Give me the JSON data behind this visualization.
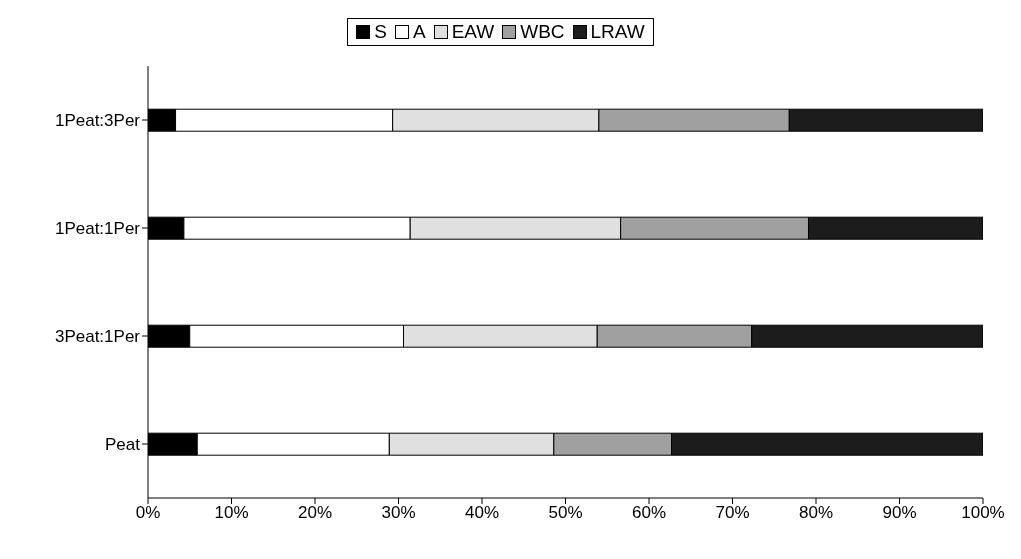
{
  "chart_data": {
    "type": "bar",
    "orientation": "horizontal",
    "stacked": true,
    "categories": [
      "1Peat:3Per",
      "1Peat:1Per",
      "3Peat:1Per",
      "Peat"
    ],
    "series": [
      {
        "name": "S",
        "color": "#000000",
        "values": [
          3.3,
          4.3,
          5.0,
          5.9
        ]
      },
      {
        "name": "A",
        "color": "#ffffff",
        "values": [
          26.0,
          27.1,
          25.6,
          23.0
        ]
      },
      {
        "name": "EAW",
        "color": "#e0e0e0",
        "values": [
          24.7,
          25.2,
          23.2,
          19.7
        ]
      },
      {
        "name": "WBC",
        "color": "#a0a0a0",
        "values": [
          22.8,
          22.5,
          18.5,
          14.1
        ]
      },
      {
        "name": "LRAW",
        "color": "#1c1c1c",
        "values": [
          23.2,
          20.9,
          27.7,
          37.3
        ]
      }
    ],
    "xlim": [
      0,
      100
    ],
    "xticks": [
      {
        "value": 0,
        "label": "0%"
      },
      {
        "value": 10,
        "label": "10%"
      },
      {
        "value": 20,
        "label": "20%"
      },
      {
        "value": 30,
        "label": "30%"
      },
      {
        "value": 40,
        "label": "40%"
      },
      {
        "value": 50,
        "label": "50%"
      },
      {
        "value": 60,
        "label": "60%"
      },
      {
        "value": 70,
        "label": "70%"
      },
      {
        "value": 80,
        "label": "80%"
      },
      {
        "value": 90,
        "label": "90%"
      },
      {
        "value": 100,
        "label": "100%"
      }
    ],
    "grid": false,
    "legend": "top"
  }
}
